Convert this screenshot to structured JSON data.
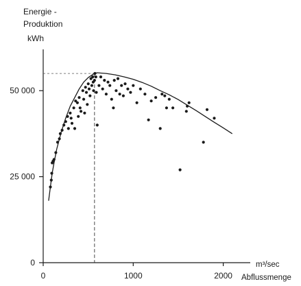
{
  "chart_data": {
    "type": "scatter",
    "title": "",
    "ylabel_lines": [
      "Energie -",
      "Produktion",
      "kWh"
    ],
    "xlabel_unit": "m³/sec",
    "xlabel": "Abflussmenge",
    "xlim": [
      0,
      2300
    ],
    "ylim": [
      0,
      62000
    ],
    "x_ticks": [
      {
        "value": 0,
        "label": "0"
      },
      {
        "value": 1000,
        "label": "1000"
      },
      {
        "value": 2000,
        "label": "2000"
      }
    ],
    "y_ticks": [
      {
        "value": 0,
        "label": "0"
      },
      {
        "value": 25000,
        "label": "25 000"
      },
      {
        "value": 50000,
        "label": "50 000"
      }
    ],
    "grid": false,
    "legend": "none",
    "reference_point": {
      "x": 570,
      "y": 55000
    },
    "envelope_curve": [
      [
        60,
        18000
      ],
      [
        80,
        22000
      ],
      [
        100,
        26000
      ],
      [
        120,
        29000
      ],
      [
        150,
        33000
      ],
      [
        200,
        38000
      ],
      [
        250,
        42000
      ],
      [
        300,
        45500
      ],
      [
        350,
        48000
      ],
      [
        400,
        50500
      ],
      [
        450,
        52500
      ],
      [
        500,
        53800
      ],
      [
        540,
        54500
      ],
      [
        570,
        55000
      ],
      [
        600,
        55200
      ],
      [
        700,
        55000
      ],
      [
        800,
        54600
      ],
      [
        900,
        54000
      ],
      [
        1000,
        53300
      ],
      [
        1100,
        52400
      ],
      [
        1200,
        51300
      ],
      [
        1300,
        50000
      ],
      [
        1400,
        48800
      ],
      [
        1500,
        47400
      ],
      [
        1600,
        45800
      ],
      [
        1700,
        44200
      ],
      [
        1800,
        42500
      ],
      [
        1900,
        40800
      ],
      [
        2000,
        39200
      ],
      [
        2100,
        37500
      ]
    ],
    "points": [
      [
        80,
        22000
      ],
      [
        90,
        24000
      ],
      [
        95,
        26000
      ],
      [
        100,
        29000
      ],
      [
        110,
        29500
      ],
      [
        120,
        30000
      ],
      [
        140,
        32000
      ],
      [
        160,
        35000
      ],
      [
        180,
        36000
      ],
      [
        190,
        37500
      ],
      [
        210,
        38500
      ],
      [
        230,
        40000
      ],
      [
        250,
        41000
      ],
      [
        270,
        42500
      ],
      [
        280,
        39000
      ],
      [
        300,
        43500
      ],
      [
        310,
        42000
      ],
      [
        320,
        40500
      ],
      [
        340,
        45000
      ],
      [
        350,
        39000
      ],
      [
        360,
        47000
      ],
      [
        380,
        46500
      ],
      [
        390,
        42500
      ],
      [
        400,
        48000
      ],
      [
        410,
        45000
      ],
      [
        420,
        44000
      ],
      [
        440,
        50000
      ],
      [
        450,
        47500
      ],
      [
        460,
        43500
      ],
      [
        470,
        51000
      ],
      [
        480,
        49500
      ],
      [
        490,
        46000
      ],
      [
        500,
        52000
      ],
      [
        510,
        50500
      ],
      [
        520,
        48500
      ],
      [
        530,
        53500
      ],
      [
        540,
        51500
      ],
      [
        550,
        54000
      ],
      [
        555,
        52500
      ],
      [
        560,
        50000
      ],
      [
        570,
        53000
      ],
      [
        575,
        55000
      ],
      [
        585,
        54000
      ],
      [
        590,
        49500
      ],
      [
        600,
        40000
      ],
      [
        620,
        51500
      ],
      [
        640,
        54000
      ],
      [
        660,
        50500
      ],
      [
        680,
        53000
      ],
      [
        700,
        49000
      ],
      [
        720,
        52500
      ],
      [
        740,
        51500
      ],
      [
        760,
        47500
      ],
      [
        780,
        45000
      ],
      [
        790,
        53000
      ],
      [
        810,
        50000
      ],
      [
        830,
        53500
      ],
      [
        850,
        49000
      ],
      [
        870,
        51500
      ],
      [
        890,
        48500
      ],
      [
        910,
        52000
      ],
      [
        940,
        50500
      ],
      [
        970,
        49500
      ],
      [
        1000,
        51500
      ],
      [
        1040,
        46500
      ],
      [
        1080,
        50500
      ],
      [
        1130,
        49000
      ],
      [
        1170,
        41500
      ],
      [
        1200,
        47000
      ],
      [
        1250,
        48000
      ],
      [
        1300,
        39000
      ],
      [
        1320,
        49000
      ],
      [
        1350,
        48500
      ],
      [
        1370,
        45000
      ],
      [
        1400,
        47500
      ],
      [
        1440,
        45000
      ],
      [
        1520,
        27000
      ],
      [
        1590,
        44000
      ],
      [
        1600,
        45500
      ],
      [
        1620,
        46500
      ],
      [
        1780,
        35000
      ],
      [
        1820,
        44500
      ],
      [
        1900,
        42000
      ]
    ]
  }
}
